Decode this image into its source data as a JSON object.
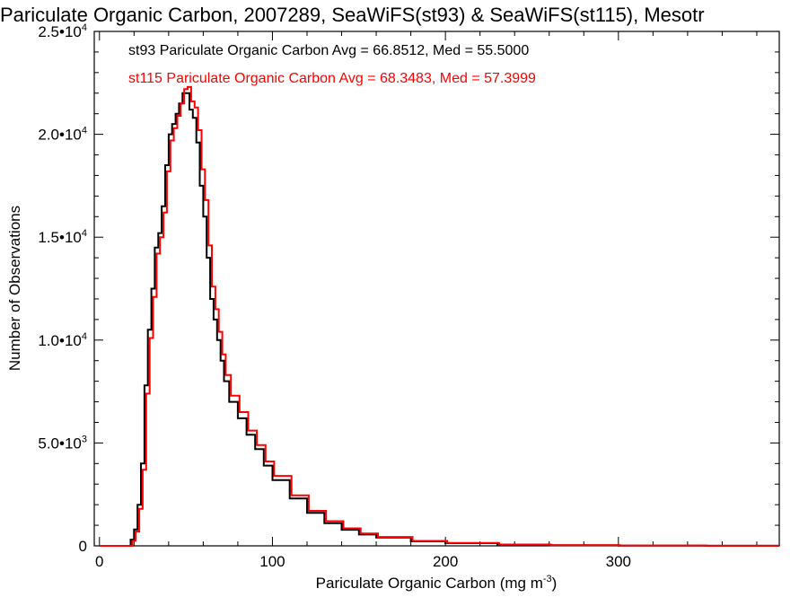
{
  "chart_data": {
    "type": "line",
    "title": "Pariculate Organic Carbon, 2007289, SeaWiFS(st93) & SeaWiFS(st115), Mesotr",
    "xlabel": "Pariculate Organic Carbon (mg m",
    "xlabel_sup": "-3",
    "xlabel_close": ")",
    "ylabel": "Number of Observations",
    "xlim": [
      -3,
      393
    ],
    "ylim": [
      0,
      25000
    ],
    "xticks": [
      {
        "value": 0,
        "label": "0"
      },
      {
        "value": 100,
        "label": "100"
      },
      {
        "value": 200,
        "label": "200"
      },
      {
        "value": 300,
        "label": "300"
      }
    ],
    "yticks": [
      {
        "value": 0,
        "mant": "0",
        "exp": ""
      },
      {
        "value": 5000,
        "mant": "5.0•10",
        "exp": "3"
      },
      {
        "value": 10000,
        "mant": "1.0•10",
        "exp": "4"
      },
      {
        "value": 15000,
        "mant": "1.5•10",
        "exp": "4"
      },
      {
        "value": 20000,
        "mant": "2.0•10",
        "exp": "4"
      },
      {
        "value": 25000,
        "mant": "2.5•10",
        "exp": "4"
      }
    ],
    "grid": false,
    "legend_position": "top-left",
    "series": [
      {
        "name": "st93 Pariculate Organic Carbon Avg = 66.8512, Med = 55.5000",
        "color": "#000000",
        "x": [
          0,
          15,
          18,
          20,
          22,
          24,
          26,
          28,
          30,
          32,
          34,
          36,
          38,
          40,
          42,
          44,
          46,
          48,
          50,
          52,
          54,
          56,
          58,
          60,
          62,
          64,
          66,
          68,
          70,
          72,
          75,
          80,
          85,
          90,
          95,
          100,
          110,
          120,
          130,
          140,
          150,
          160,
          180,
          200,
          230,
          260,
          300,
          350,
          393
        ],
        "y": [
          0,
          0,
          300,
          800,
          2000,
          4000,
          7800,
          10500,
          12500,
          14500,
          15200,
          16500,
          18500,
          20000,
          20500,
          21000,
          21500,
          22000,
          22000,
          21200,
          20800,
          19600,
          17500,
          16000,
          14000,
          12000,
          11000,
          10000,
          9000,
          8000,
          7000,
          6200,
          5400,
          4700,
          3900,
          3200,
          2300,
          1600,
          1100,
          780,
          550,
          400,
          220,
          130,
          60,
          30,
          15,
          5,
          0
        ]
      },
      {
        "name": "st115 Pariculate Organic Carbon Avg = 68.3483, Med = 57.3999",
        "color": "#ff0000",
        "x": [
          0,
          16,
          19,
          21,
          23,
          25,
          27,
          29,
          31,
          33,
          35,
          37,
          39,
          41,
          43,
          45,
          47,
          49,
          51,
          53,
          55,
          57,
          59,
          61,
          63,
          65,
          67,
          69,
          71,
          73,
          76,
          81,
          86,
          91,
          96,
          101,
          111,
          121,
          131,
          141,
          151,
          161,
          181,
          201,
          231,
          261,
          301,
          351,
          393
        ],
        "y": [
          0,
          0,
          250,
          700,
          1800,
          3700,
          7400,
          10100,
          12100,
          14200,
          15000,
          16200,
          18200,
          19700,
          20300,
          20900,
          21500,
          22200,
          22300,
          21600,
          21300,
          20200,
          18300,
          16800,
          14600,
          12600,
          11500,
          10400,
          9300,
          8300,
          7300,
          6500,
          5600,
          4900,
          4100,
          3400,
          2450,
          1700,
          1200,
          850,
          600,
          430,
          240,
          140,
          65,
          35,
          18,
          6,
          0
        ]
      }
    ]
  }
}
